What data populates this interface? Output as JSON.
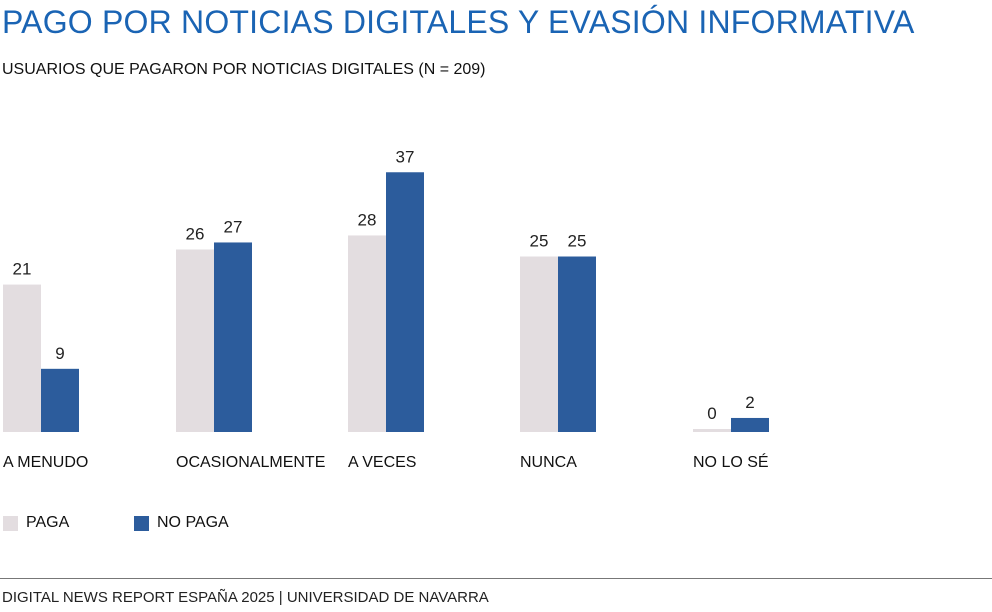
{
  "title": "PAGO POR NOTICIAS DIGITALES Y EVASIÓN INFORMATIVA",
  "subtitle": "USUARIOS QUE PAGARON POR NOTICIAS DIGITALES (N = 209)",
  "footer": "DIGITAL NEWS REPORT ESPAÑA 2025 | UNIVERSIDAD DE NAVARRA",
  "colors": {
    "title": "#1a64b4",
    "paga": "#e3dde0",
    "no_paga": "#2c5c9c"
  },
  "chart_data": {
    "type": "bar",
    "title": "PAGO POR NOTICIAS DIGITALES Y EVASIÓN INFORMATIVA",
    "subtitle": "USUARIOS QUE PAGARON POR NOTICIAS DIGITALES (N = 209)",
    "xlabel": "",
    "ylabel": "",
    "categories": [
      "A MENUDO",
      "OCASIONALMENTE",
      "A VECES",
      "NUNCA",
      "NO LO SÉ"
    ],
    "series": [
      {
        "name": "PAGA",
        "values": [
          21,
          26,
          28,
          25,
          0
        ],
        "color": "#e3dde0"
      },
      {
        "name": "NO PAGA",
        "values": [
          9,
          27,
          37,
          25,
          2
        ],
        "color": "#2c5c9c"
      }
    ],
    "ylim": [
      0,
      37
    ],
    "grid": false,
    "data_labels": true,
    "legend_position": "bottom-left"
  }
}
